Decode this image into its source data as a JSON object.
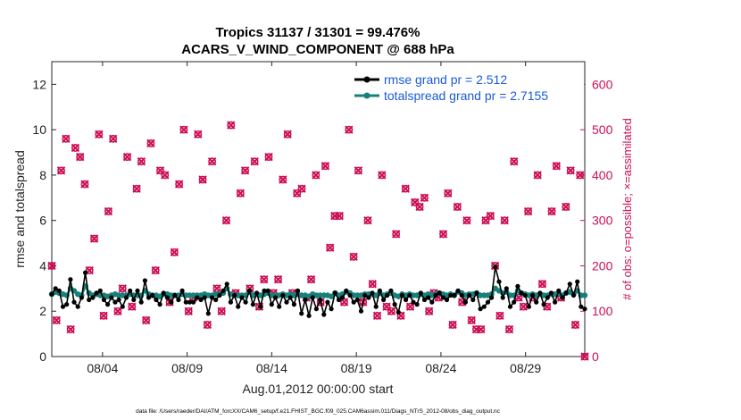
{
  "chart_data": {
    "type": "line",
    "title_line1": "Tropics 31137 / 31301 = 99.476%",
    "title_line2": "ACARS_V_WIND_COMPONENT @ 688 hPa",
    "xlabel": "Aug.01,2012 00:00:00 start",
    "ylabel": "rmse and totalspread",
    "ylabel_right": "# of obs: o=possible; ×=assimilated",
    "footnote": "data file: /Users/raeder/DAI/ATM_forcXX/CAM6_setup/f.e21.FHIST_BGC.f09_025.CAM6assim.011/Diags_NTrS_2012-08/obs_diag_output.nc",
    "xlim": [
      1,
      32.5
    ],
    "ylim": [
      0,
      13
    ],
    "ylim_right": [
      0,
      650
    ],
    "x_ticks": [
      4,
      9,
      14,
      19,
      24,
      29
    ],
    "x_tick_labels": [
      "08/04",
      "08/09",
      "08/14",
      "08/19",
      "08/24",
      "08/29"
    ],
    "y_ticks": [
      0,
      2,
      4,
      6,
      8,
      10,
      12
    ],
    "y_tick_labels": [
      "0",
      "2",
      "4",
      "6",
      "8",
      "10",
      "12"
    ],
    "y_right_ticks": [
      0,
      100,
      200,
      300,
      400,
      500,
      600
    ],
    "y_right_tick_labels": [
      "0",
      "100",
      "200",
      "300",
      "400",
      "500",
      "600"
    ],
    "colors": {
      "rmse": "#000000",
      "spread": "#16807a",
      "obs": "#cc0e55",
      "legend_text": "#1a5ad6"
    },
    "series": [
      {
        "name": "rmse grand pr = 2.512",
        "color": "#000000",
        "values": [
          2.75,
          3.0,
          2.9,
          2.2,
          2.3,
          3.4,
          2.4,
          2.2,
          2.6,
          3.7,
          2.5,
          2.6,
          2.8,
          2.9,
          2.5,
          2.3,
          2.6,
          2.4,
          2.5,
          2.2,
          2.6,
          2.9,
          2.5,
          2.9,
          2.4,
          3.35,
          2.6,
          2.7,
          2.5,
          2.3,
          2.8,
          2.6,
          2.4,
          2.7,
          2.5,
          2.9,
          2.4,
          2.4,
          2.4,
          2.6,
          2.5,
          2.6,
          1.9,
          2.6,
          2.5,
          2.7,
          2.9,
          3.2,
          2.4,
          2.7,
          2.2,
          2.6,
          2.4,
          2.9,
          2.3,
          2.8,
          2.2,
          2.9,
          2.9,
          2.3,
          2.6,
          2.2,
          2.7,
          2.4,
          2.6,
          2.3,
          2.9,
          1.9,
          2.5,
          1.8,
          2.6,
          2.1,
          2.5,
          1.85,
          2.4,
          2.1,
          2.8,
          2.5,
          2.6,
          2.9,
          2.7,
          2.4,
          2.5,
          2.0,
          2.7,
          2.6,
          2.8,
          2.2,
          2.9,
          2.5,
          2.7,
          2.9,
          2.3,
          1.95,
          2.7,
          2.5,
          2.7,
          2.4,
          2.3,
          2.8,
          2.5,
          2.6,
          2.4,
          2.7,
          2.8,
          2.6,
          2.5,
          2.7,
          2.7,
          2.9,
          2.7,
          2.4,
          2.7,
          2.5,
          2.8,
          2.1,
          2.2,
          2.4,
          2.6,
          3.95,
          3.3,
          2.6,
          3.0,
          2.2,
          2.4,
          3.1,
          2.8,
          2.7,
          2.2,
          2.7,
          2.4,
          2.8,
          2.3,
          2.6,
          2.8,
          2.4,
          2.9,
          2.6,
          2.8,
          3.2,
          2.7,
          3.3,
          2.2,
          2.1
        ]
      },
      {
        "name": "totalspread grand pr = 2.7155",
        "color": "#16807a",
        "values": [
          2.75,
          2.85,
          2.8,
          2.75,
          2.7,
          3.0,
          2.9,
          2.75,
          2.7,
          3.1,
          2.8,
          2.7,
          2.75,
          2.7,
          2.7,
          2.65,
          2.7,
          2.75,
          2.7,
          2.7,
          2.7,
          2.75,
          2.7,
          2.7,
          2.7,
          2.9,
          2.75,
          2.7,
          2.7,
          2.65,
          2.75,
          2.75,
          2.7,
          2.7,
          2.7,
          2.75,
          2.7,
          2.7,
          2.7,
          2.7,
          2.7,
          2.75,
          2.7,
          2.7,
          2.75,
          2.75,
          2.8,
          3.0,
          2.75,
          2.7,
          2.7,
          2.7,
          2.7,
          2.85,
          2.7,
          2.75,
          2.7,
          2.75,
          2.8,
          2.7,
          2.7,
          2.7,
          2.75,
          2.7,
          2.75,
          2.7,
          2.75,
          2.7,
          2.7,
          2.65,
          2.75,
          2.7,
          2.7,
          2.7,
          2.7,
          2.65,
          2.8,
          2.7,
          2.75,
          2.85,
          2.8,
          2.7,
          2.7,
          2.7,
          2.75,
          2.75,
          2.75,
          2.7,
          2.8,
          2.7,
          2.75,
          2.8,
          2.7,
          2.65,
          2.75,
          2.7,
          2.75,
          2.7,
          2.7,
          2.75,
          2.7,
          2.75,
          2.7,
          2.75,
          2.8,
          2.75,
          2.7,
          2.75,
          2.7,
          2.85,
          2.8,
          2.7,
          2.75,
          2.75,
          2.8,
          2.7,
          2.7,
          2.7,
          2.75,
          3.0,
          2.9,
          2.8,
          2.85,
          2.7,
          2.7,
          2.9,
          2.8,
          2.75,
          2.7,
          2.75,
          2.7,
          2.75,
          2.7,
          2.7,
          2.75,
          2.75,
          2.8,
          2.7,
          2.8,
          2.85,
          2.75,
          2.9,
          2.7,
          2.7
        ]
      }
    ],
    "obs_possible": [
      200,
      80,
      410,
      480,
      60,
      460,
      440,
      380,
      190,
      260,
      490,
      90,
      320,
      480,
      100,
      150,
      440,
      110,
      370,
      430,
      80,
      470,
      190,
      410,
      400,
      120,
      230,
      380,
      500,
      100,
      130,
      490,
      390,
      70,
      430,
      150,
      100,
      300,
      510,
      140,
      360,
      410,
      150,
      430,
      110,
      170,
      440,
      140,
      170,
      390,
      490,
      140,
      360,
      370,
      130,
      170,
      400,
      120,
      420,
      240,
      310,
      310,
      120,
      500,
      220,
      410,
      120,
      300,
      160,
      90,
      400,
      110,
      100,
      270,
      90,
      370,
      110,
      340,
      330,
      350,
      100,
      140,
      130,
      270,
      360,
      70,
      330,
      120,
      300,
      80,
      60,
      60,
      300,
      310,
      200,
      90,
      300,
      60,
      430,
      130,
      110,
      320,
      130,
      400,
      160,
      110,
      320,
      420,
      130,
      330,
      410,
      70,
      400,
      0
    ]
  }
}
